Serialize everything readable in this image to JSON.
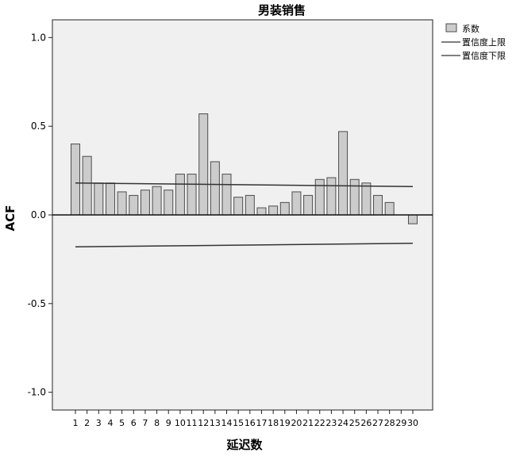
{
  "chart_data": {
    "type": "bar",
    "title": "男装销售",
    "xlabel": "延迟数",
    "ylabel": "ACF",
    "ylim": [
      -1.0,
      1.0
    ],
    "yticks": [
      "1.0",
      "0.5",
      "0.0",
      "-0.5",
      "-1.0"
    ],
    "ytick_values": [
      1.0,
      0.5,
      0.0,
      -0.5,
      -1.0
    ],
    "categories": [
      "1",
      "2",
      "3",
      "4",
      "5",
      "6",
      "7",
      "8",
      "9",
      "10",
      "11",
      "12",
      "13",
      "14",
      "15",
      "16",
      "17",
      "18",
      "19",
      "20",
      "21",
      "22",
      "23",
      "24",
      "25",
      "26",
      "27",
      "28",
      "29",
      "30"
    ],
    "series": [
      {
        "name": "系数",
        "values": [
          0.4,
          0.33,
          0.18,
          0.18,
          0.13,
          0.11,
          0.14,
          0.16,
          0.14,
          0.23,
          0.23,
          0.57,
          0.3,
          0.23,
          0.1,
          0.11,
          0.04,
          0.05,
          0.07,
          0.13,
          0.11,
          0.2,
          0.21,
          0.47,
          0.2,
          0.18,
          0.11,
          0.07,
          0.0,
          -0.05
        ]
      }
    ],
    "confidence_upper": {
      "name": "置信度上限",
      "start": 0.18,
      "end": 0.16
    },
    "confidence_lower": {
      "name": "置信度下限",
      "start": -0.18,
      "end": -0.16
    },
    "legend_position": "top-right",
    "colors": {
      "plot_background": "#f0f0f0",
      "bar_fill": "#cccccc",
      "bar_stroke": "#4d4d4d",
      "line": "#333333"
    }
  }
}
